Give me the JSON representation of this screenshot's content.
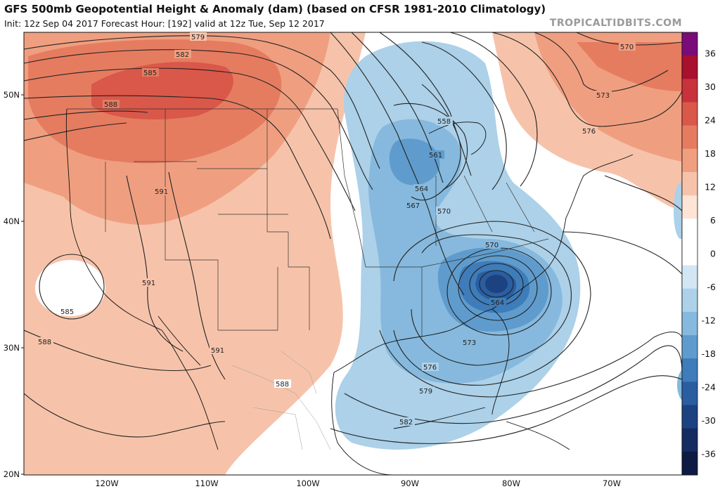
{
  "header": {
    "title": "GFS 500mb Geopotential Height & Anomaly (dam) (based on CFSR 1981-2010 Climatology)",
    "subtitle": "Init: 12z Sep 04 2017   Forecast Hour: [192]   valid at 12z Tue, Sep 12 2017",
    "brand": "TROPICALTIDBITS.COM"
  },
  "axes": {
    "lat_labels": [
      "50N",
      "40N",
      "30N",
      "20N"
    ],
    "lon_labels": [
      "120W",
      "110W",
      "100W",
      "90W",
      "80W",
      "70W"
    ]
  },
  "colorbar": {
    "labels": [
      "36",
      "30",
      "24",
      "18",
      "12",
      "6",
      "0",
      "-6",
      "-12",
      "-18",
      "-24",
      "-30",
      "-36"
    ],
    "colors": [
      "#7a0c7a",
      "#a8102e",
      "#c8323c",
      "#d9584a",
      "#e57c60",
      "#ef9f80",
      "#f6c3aa",
      "#fde4d6",
      "#ffffff",
      "#ffffff",
      "#d3e6f3",
      "#acd1e9",
      "#86b9dd",
      "#5f9ccd",
      "#3e7cba",
      "#2a5ea0",
      "#1c4281",
      "#142c60",
      "#0c1a44"
    ]
  },
  "contour_labels": [
    "579",
    "582",
    "585",
    "588",
    "591",
    "591",
    "591",
    "588",
    "585",
    "588",
    "558",
    "561",
    "564",
    "567",
    "570",
    "570",
    "564",
    "573",
    "576",
    "579",
    "582",
    "570",
    "573",
    "576"
  ],
  "colors": {
    "warm_light": "#f6c3aa",
    "warm_mid": "#ef9f80",
    "warm_dark": "#e57c60",
    "warm_darkest": "#d9584a",
    "cool_light": "#acd1e9",
    "cool_mid": "#86b9dd",
    "cool_dark": "#5f9ccd",
    "cool_darker": "#3e7cba",
    "cool_darkest": "#2a5ea0",
    "cool_core": "#1c4281"
  }
}
